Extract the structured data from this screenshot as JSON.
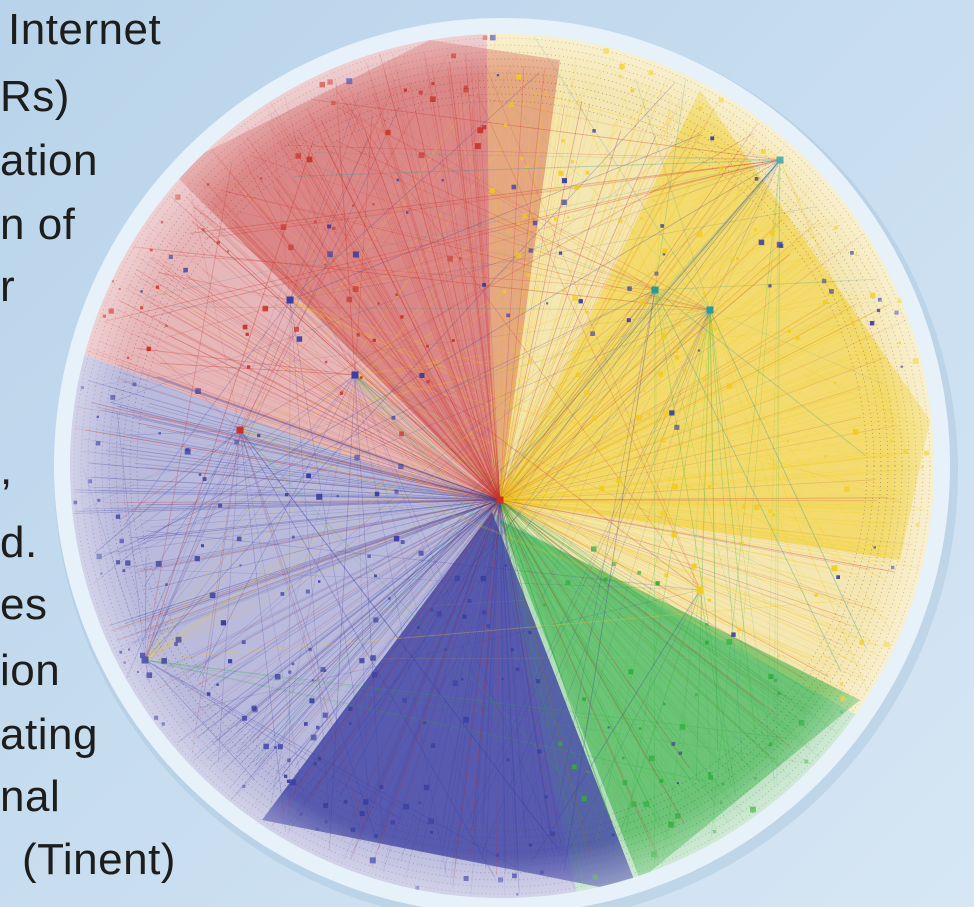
{
  "text_fragments": [
    "Internet",
    "Rs)",
    "ation",
    "n of",
    "r",
    ",",
    "d.",
    "es",
    "ion",
    "ating",
    "nal",
    "(Tinent)"
  ],
  "figure": {
    "palette": {
      "red": "#c8322a",
      "yellow": "#f2cb1c",
      "blue": "#3b3fa0",
      "green": "#2fae3c",
      "teal": "#2b9a9a",
      "disc_border": "#e7f1fa",
      "disc_fill": "#f6f5fb"
    }
  }
}
